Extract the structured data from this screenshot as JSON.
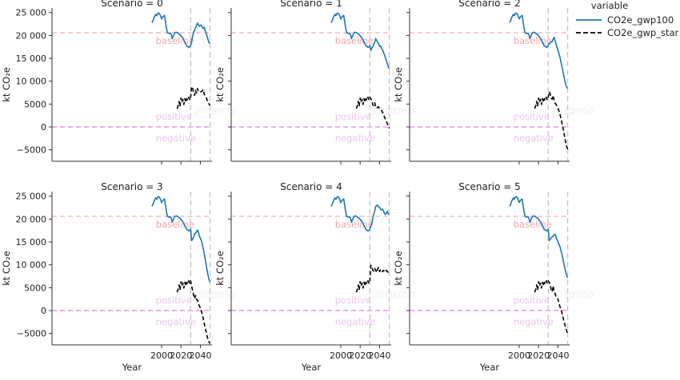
{
  "chart_data": {
    "type": "line",
    "facet_label": "Scenario",
    "xlabel": "Year",
    "ylabel": "kt CO₂e",
    "xlim": [
      1887,
      2052
    ],
    "ylim": [
      -7500,
      26000
    ],
    "xticks": [
      2000,
      2020,
      2040
    ],
    "yticks": [
      -5000,
      0,
      5000,
      10000,
      15000,
      20000,
      25000
    ],
    "ytick_labels": [
      "−5000",
      "0",
      "5000",
      "10 000",
      "15 000",
      "20 000",
      "25 000"
    ],
    "legend": {
      "title": "variable",
      "position": "outside-right",
      "entries": [
        {
          "name": "CO2e_gwp100",
          "color": "#1f77b4",
          "dash": "solid"
        },
        {
          "name": "CO2e_gwp_star",
          "color": "#000000",
          "dash": "dashed"
        }
      ]
    },
    "reference_lines": {
      "baseline": {
        "y": 20600,
        "label": "baseline",
        "color": "#f4a6a6"
      },
      "zero": {
        "y": 0,
        "color": "#dd88dd"
      },
      "vlines": [
        {
          "x": 2030,
          "color": "#c8c8c8",
          "label": "2030"
        },
        {
          "x": 2050,
          "color": "#c8c8c8",
          "label": "2050"
        }
      ]
    },
    "annotations": [
      {
        "text": "baseline",
        "color": "#f4a6a6"
      },
      {
        "text": "positive",
        "color": "#ecc6ec"
      },
      {
        "text": "negative",
        "color": "#ecc6ec"
      },
      {
        "text": "2030",
        "color": "#f0f0f0"
      },
      {
        "text": "2050",
        "color": "#f0f0f0"
      }
    ],
    "common_gwp100": {
      "x": [
        1990,
        1991,
        1992,
        1993,
        1994,
        1995,
        1996,
        1997,
        1998,
        1999,
        2000,
        2001,
        2002,
        2003,
        2004,
        2005,
        2006,
        2007,
        2008,
        2009,
        2010,
        2011,
        2012,
        2013,
        2014,
        2015,
        2016,
        2017,
        2018,
        2019,
        2020,
        2021,
        2022,
        2023,
        2024,
        2025,
        2026,
        2027,
        2028,
        2029,
        2030
      ],
      "y": [
        22800,
        23100,
        23800,
        24200,
        24600,
        24300,
        24800,
        24900,
        24700,
        24200,
        23600,
        24000,
        24200,
        24400,
        23100,
        21700,
        20600,
        20500,
        20400,
        20500,
        20200,
        19300,
        19800,
        20300,
        20600,
        20700,
        20600,
        20500,
        20300,
        20200,
        19900,
        19700,
        19400,
        18900,
        18600,
        18100,
        17700,
        17600,
        17400,
        17500,
        17800
      ]
    },
    "common_gwp_star": {
      "x": [
        2016,
        2017,
        2018,
        2019,
        2020,
        2021,
        2022,
        2023,
        2024,
        2025,
        2026,
        2027,
        2028,
        2029,
        2030
      ],
      "y": [
        4000,
        4600,
        5600,
        4500,
        6300,
        5400,
        6000,
        4900,
        6200,
        5400,
        6200,
        5800,
        6500,
        5900,
        6500
      ]
    },
    "panels": [
      {
        "title": "Scenario = 0",
        "gwp100": {
          "x": [
            2031,
            2032,
            2033,
            2034,
            2035,
            2036,
            2037,
            2038,
            2039,
            2040,
            2041,
            2042,
            2043,
            2044,
            2045,
            2046,
            2047,
            2048,
            2049,
            2050
          ],
          "y": [
            18700,
            19800,
            20700,
            21100,
            21600,
            22200,
            22700,
            22300,
            22000,
            22300,
            22100,
            21800,
            21500,
            21800,
            21000,
            20500,
            19800,
            19000,
            18400,
            18200
          ]
        },
        "gwp_star": {
          "x": [
            2031,
            2032,
            2033,
            2034,
            2035,
            2036,
            2037,
            2038,
            2039,
            2040,
            2041,
            2042,
            2043,
            2044,
            2045,
            2046,
            2047,
            2048,
            2049,
            2050
          ],
          "y": [
            8800,
            8500,
            7500,
            6900,
            8000,
            7400,
            8400,
            7800,
            7900,
            7700,
            7700,
            7900,
            8200,
            7100,
            6800,
            6400,
            5900,
            5300,
            5000,
            4700
          ]
        }
      },
      {
        "title": "Scenario = 1",
        "gwp100": {
          "x": [
            2031,
            2032,
            2033,
            2034,
            2035,
            2036,
            2037,
            2038,
            2039,
            2040,
            2041,
            2042,
            2043,
            2044,
            2045,
            2046,
            2047,
            2048,
            2049,
            2050
          ],
          "y": [
            16700,
            17300,
            17500,
            18100,
            18500,
            19300,
            18900,
            18600,
            18200,
            17600,
            17700,
            17300,
            16800,
            16400,
            15800,
            15200,
            14500,
            13800,
            13100,
            12700
          ]
        },
        "gwp_star": {
          "x": [
            2031,
            2032,
            2033,
            2034,
            2035,
            2036,
            2037,
            2038,
            2039,
            2040,
            2041,
            2042,
            2043,
            2044,
            2045,
            2046,
            2047,
            2048,
            2049,
            2050
          ],
          "y": [
            6200,
            5800,
            4800,
            4700,
            5300,
            4500,
            4100,
            4300,
            4400,
            3900,
            3700,
            3600,
            3200,
            2900,
            2200,
            1700,
            1200,
            700,
            200,
            -300
          ]
        }
      },
      {
        "title": "Scenario = 2",
        "gwp100": {
          "x": [
            2031,
            2032,
            2033,
            2034,
            2035,
            2036,
            2037,
            2038,
            2039,
            2040,
            2041,
            2042,
            2043,
            2044,
            2045,
            2046,
            2047,
            2048,
            2049,
            2050
          ],
          "y": [
            18300,
            18400,
            18600,
            18600,
            19200,
            19600,
            18900,
            18200,
            17400,
            16800,
            16000,
            15300,
            14300,
            13300,
            12300,
            11200,
            10200,
            9300,
            8700,
            8400
          ]
        },
        "gwp_star": {
          "x": [
            2031,
            2032,
            2033,
            2034,
            2035,
            2036,
            2037,
            2038,
            2039,
            2040,
            2041,
            2042,
            2043,
            2044,
            2045,
            2046,
            2047,
            2048,
            2049,
            2050
          ],
          "y": [
            7700,
            7200,
            6300,
            6100,
            6900,
            5800,
            5200,
            5000,
            4500,
            4100,
            3500,
            2800,
            2000,
            1000,
            0,
            -1000,
            -2300,
            -3500,
            -4300,
            -4900
          ]
        }
      },
      {
        "title": "Scenario = 3",
        "gwp100": {
          "x": [
            2031,
            2032,
            2033,
            2034,
            2035,
            2036,
            2037,
            2038,
            2039,
            2040,
            2041,
            2042,
            2043,
            2044,
            2045,
            2046,
            2047,
            2048,
            2049,
            2050
          ],
          "y": [
            15300,
            15600,
            16000,
            16800,
            16900,
            17200,
            17600,
            17100,
            16300,
            15800,
            15300,
            14500,
            13500,
            12400,
            11200,
            10000,
            8800,
            7600,
            6700,
            6200
          ]
        },
        "gwp_star": {
          "x": [
            2031,
            2032,
            2033,
            2034,
            2035,
            2036,
            2037,
            2038,
            2039,
            2040,
            2041,
            2042,
            2043,
            2044,
            2045,
            2046,
            2047,
            2048,
            2049,
            2050
          ],
          "y": [
            5400,
            4400,
            3400,
            2600,
            3300,
            2400,
            2300,
            1500,
            1000,
            600,
            -100,
            -800,
            -1800,
            -2800,
            -3800,
            -4600,
            -5600,
            -6400,
            -6900,
            -7200
          ]
        }
      },
      {
        "title": "Scenario = 4",
        "gwp100": {
          "x": [
            2031,
            2032,
            2033,
            2034,
            2035,
            2036,
            2037,
            2038,
            2039,
            2040,
            2041,
            2042,
            2043,
            2044,
            2045,
            2046,
            2047,
            2048,
            2049,
            2050
          ],
          "y": [
            18500,
            19100,
            20200,
            21100,
            21800,
            22700,
            23000,
            23000,
            22600,
            22600,
            22100,
            22000,
            22200,
            21800,
            21300,
            21000,
            21300,
            21700,
            21100,
            20900
          ]
        },
        "gwp_star": {
          "x": [
            2031,
            2032,
            2033,
            2034,
            2035,
            2036,
            2037,
            2038,
            2039,
            2040,
            2041,
            2042,
            2043,
            2044,
            2045,
            2046,
            2047,
            2048,
            2049,
            2050
          ],
          "y": [
            9900,
            9500,
            8800,
            8600,
            9200,
            8800,
            8300,
            9100,
            9400,
            8500,
            8900,
            9000,
            8500,
            8800,
            8600,
            8400,
            8800,
            8500,
            8300,
            8400
          ]
        }
      },
      {
        "title": "Scenario = 5",
        "gwp100": {
          "x": [
            2031,
            2032,
            2033,
            2034,
            2035,
            2036,
            2037,
            2038,
            2039,
            2040,
            2041,
            2042,
            2043,
            2044,
            2045,
            2046,
            2047,
            2048,
            2049,
            2050
          ],
          "y": [
            15300,
            15600,
            15800,
            16200,
            16200,
            16500,
            16700,
            16100,
            15500,
            15100,
            14500,
            14000,
            13200,
            12400,
            11400,
            10400,
            9400,
            8400,
            7600,
            7200
          ]
        },
        "gwp_star": {
          "x": [
            2031,
            2032,
            2033,
            2034,
            2035,
            2036,
            2037,
            2038,
            2039,
            2040,
            2041,
            2042,
            2043,
            2044,
            2045,
            2046,
            2047,
            2048,
            2049,
            2050
          ],
          "y": [
            6200,
            5700,
            4400,
            4100,
            5400,
            4100,
            3800,
            3000,
            2800,
            2500,
            1500,
            900,
            300,
            -400,
            -1300,
            -2200,
            -3000,
            -3800,
            -4500,
            -5000
          ]
        }
      }
    ]
  }
}
